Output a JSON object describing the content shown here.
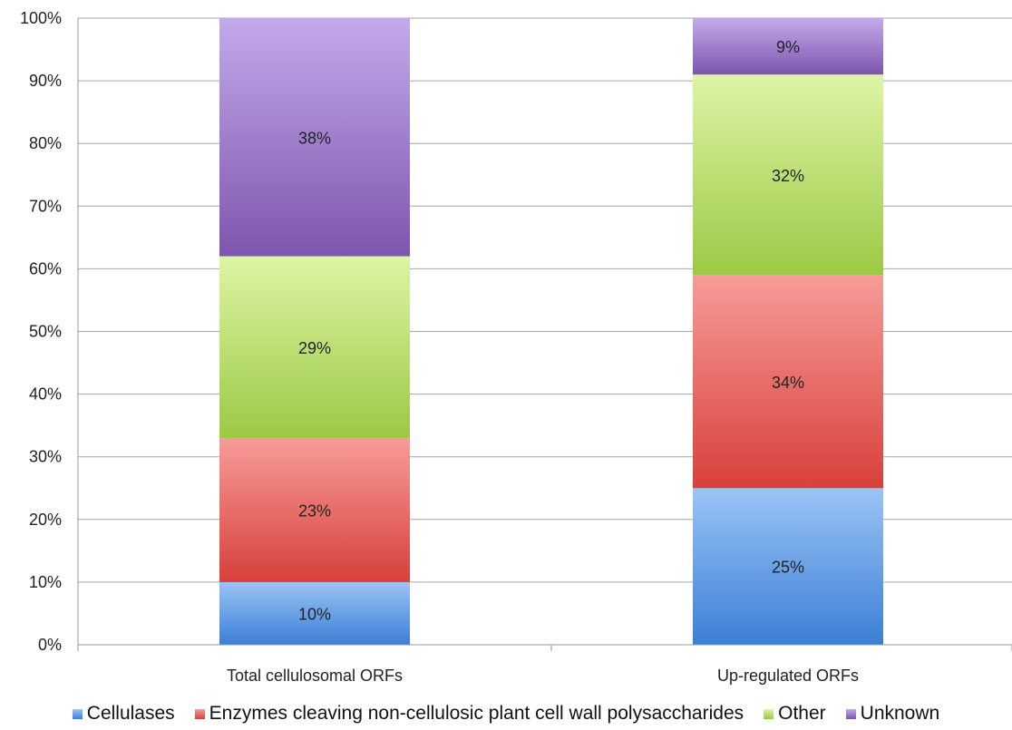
{
  "chart_data": {
    "type": "bar",
    "stacked": true,
    "categories": [
      "Total cellulosomal ORFs",
      "Up-regulated ORFs"
    ],
    "series": [
      {
        "name": "Cellulases",
        "values": [
          10,
          25
        ],
        "labels": [
          "10%",
          "25%"
        ],
        "color_top": "#9cc4f5",
        "color_bottom": "#3b7fd6"
      },
      {
        "name": "Enzymes cleaving non-cellulosic plant cell wall polysaccharides",
        "values": [
          23,
          34
        ],
        "labels": [
          "23%",
          "34%"
        ],
        "color_top": "#f79c98",
        "color_bottom": "#d8403b"
      },
      {
        "name": "Other",
        "values": [
          29,
          32
        ],
        "labels": [
          "29%",
          "32%"
        ],
        "color_top": "#ddf5a5",
        "color_bottom": "#9cc945"
      },
      {
        "name": "Unknown",
        "values": [
          38,
          9
        ],
        "labels": [
          "38%",
          "9%"
        ],
        "color_top": "#c3aaea",
        "color_bottom": "#7d55ae"
      }
    ],
    "y_ticks": [
      "0%",
      "10%",
      "20%",
      "30%",
      "40%",
      "50%",
      "60%",
      "70%",
      "80%",
      "90%",
      "100%"
    ],
    "ylim": [
      0,
      100
    ],
    "grid": true,
    "legend_position": "bottom",
    "title": "",
    "xlabel": "",
    "ylabel": ""
  }
}
